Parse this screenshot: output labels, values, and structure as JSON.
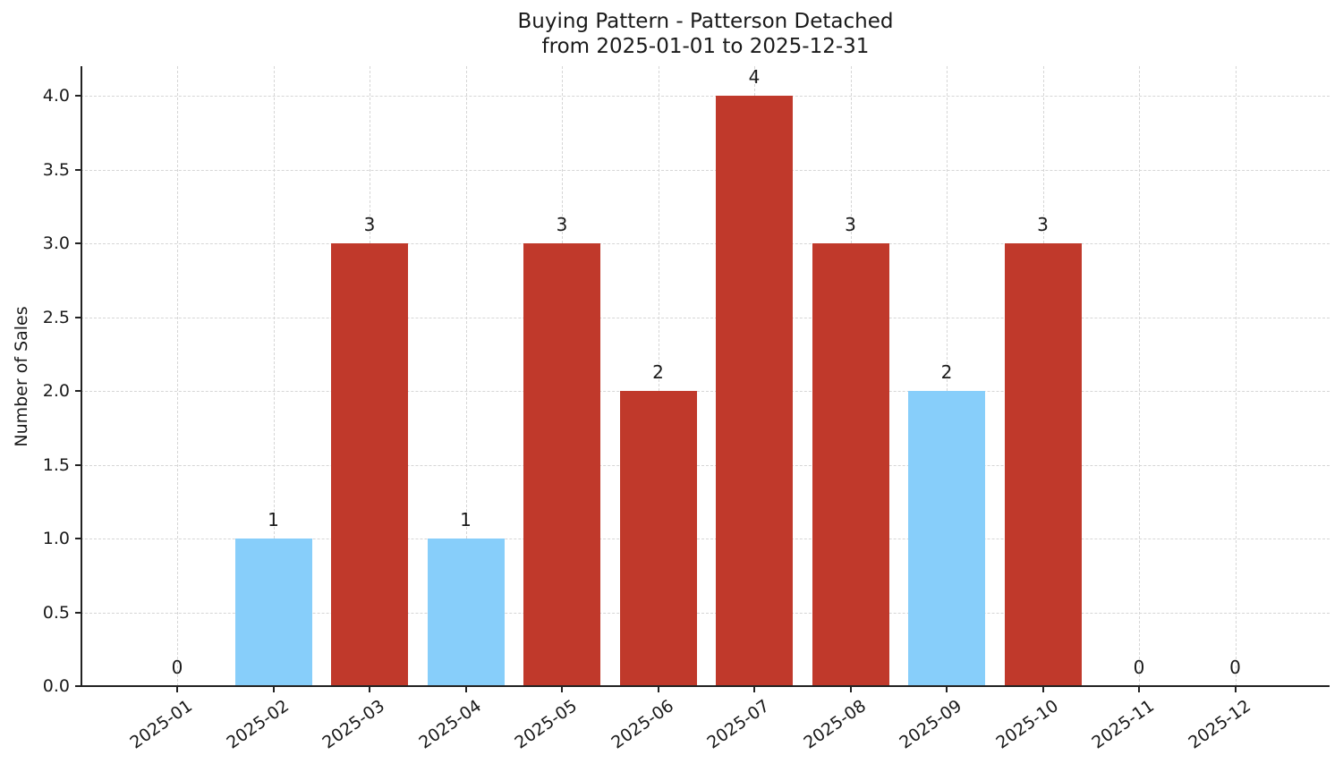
{
  "chart_data": {
    "type": "bar",
    "title": "Buying Pattern - Patterson Detached",
    "subtitle": "from 2025-01-01 to 2025-12-31",
    "xlabel": "",
    "ylabel": "Number of Sales",
    "ylim": [
      0,
      4.2
    ],
    "yticks": [
      "0.0",
      "0.5",
      "1.0",
      "1.5",
      "2.0",
      "2.5",
      "3.0",
      "3.5",
      "4.0"
    ],
    "grid": true,
    "categories": [
      "2025-01",
      "2025-02",
      "2025-03",
      "2025-04",
      "2025-05",
      "2025-06",
      "2025-07",
      "2025-08",
      "2025-09",
      "2025-10",
      "2025-11",
      "2025-12"
    ],
    "values": [
      0,
      1,
      3,
      1,
      3,
      2,
      4,
      3,
      2,
      3,
      0,
      0
    ],
    "bar_labels": [
      "0",
      "1",
      "3",
      "1",
      "3",
      "2",
      "4",
      "3",
      "2",
      "3",
      "0",
      "0"
    ],
    "bar_colors": [
      "#c0392b",
      "#87cefa",
      "#c0392b",
      "#87cefa",
      "#c0392b",
      "#c0392b",
      "#c0392b",
      "#c0392b",
      "#87cefa",
      "#c0392b",
      "#c0392b",
      "#c0392b"
    ],
    "colors": {
      "high": "#c0392b",
      "low": "#87cefa"
    }
  }
}
